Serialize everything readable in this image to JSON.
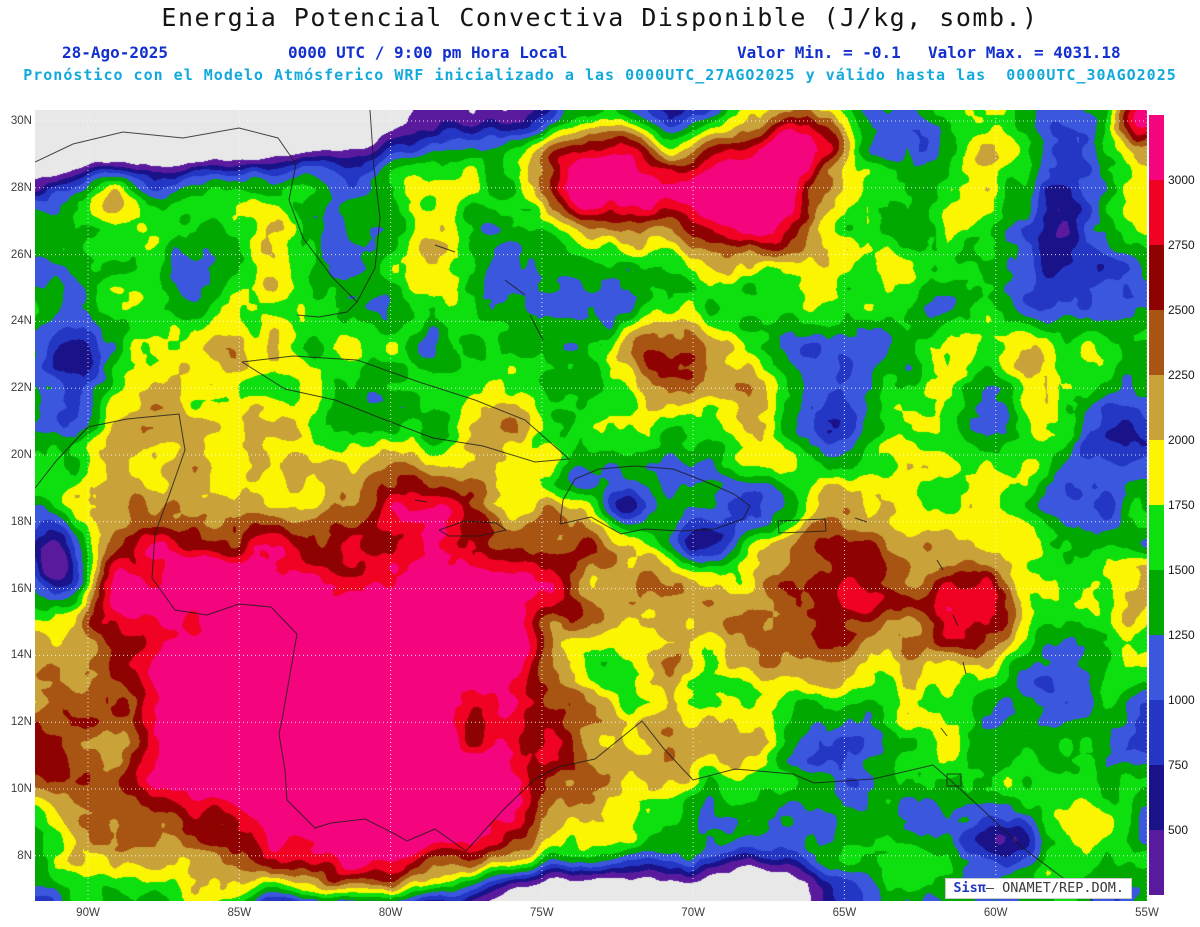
{
  "title": "Energia Potencial Convectiva Disponible (J/kg, somb.)",
  "header": {
    "date": "28-Ago-2025",
    "time": "0000 UTC / 9:00 pm Hora Local",
    "min_label": "Valor Min. = -0.1",
    "max_label": "Valor Max. = 4031.18",
    "forecast": "Pronóstico con el Modelo Atmósferico WRF inicializado a las 0000UTC_27AGO2025 y válido hasta las  0000UTC_30AGO2025"
  },
  "axes": {
    "lat": [
      "30N",
      "28N",
      "26N",
      "24N",
      "22N",
      "20N",
      "18N",
      "16N",
      "14N",
      "12N",
      "10N",
      "8N"
    ],
    "lon": [
      "90W",
      "85W",
      "80W",
      "75W",
      "70W",
      "65W",
      "60W",
      "55W"
    ]
  },
  "colorbar": {
    "ticks": [
      "3000",
      "2750",
      "2500",
      "2250",
      "2000",
      "1750",
      "1500",
      "1250",
      "1000",
      "750",
      "500"
    ],
    "colors": [
      "#f4057e",
      "#ef0222",
      "#8e0202",
      "#a85513",
      "#c9a23a",
      "#fbf501",
      "#0edf0e",
      "#00a800",
      "#3b57dd",
      "#2336c4",
      "#191289",
      "#5a1a9e"
    ]
  },
  "map": {
    "no_value_color": "#e8e8e8",
    "grid_color": "#ffffff",
    "coast_color": "#1a1a1a"
  },
  "watermark": {
    "brand": "Sisπ",
    "org": "– ONAMET/REP.DOM."
  },
  "chart_data": {
    "type": "heatmap",
    "title": "Energia Potencial Convectiva Disponible (J/kg, somb.)",
    "units": "J/kg",
    "value_min": -0.1,
    "value_max": 4031.18,
    "levels": [
      500,
      750,
      1000,
      1250,
      1500,
      1750,
      2000,
      2250,
      2500,
      2750,
      3000
    ],
    "lat_labels": [
      "30N",
      "28N",
      "26N",
      "24N",
      "22N",
      "20N",
      "18N",
      "16N",
      "14N",
      "12N",
      "10N",
      "8N"
    ],
    "lon_labels": [
      "90W",
      "85W",
      "80W",
      "75W",
      "70W",
      "65W",
      "60W",
      "55W"
    ],
    "legend_position": "right"
  }
}
